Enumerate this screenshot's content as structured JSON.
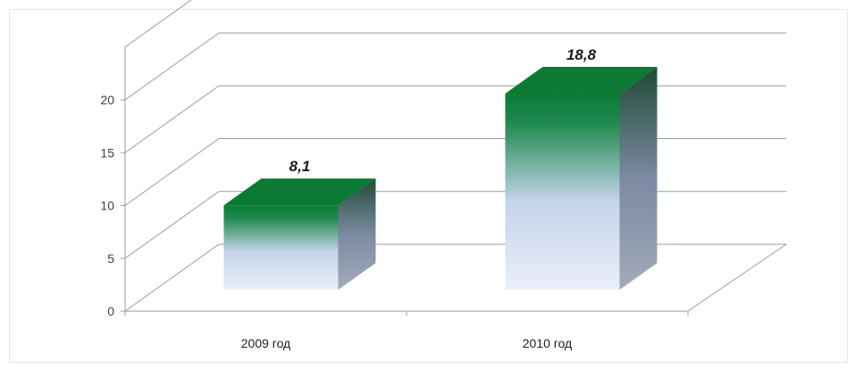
{
  "chart_data": {
    "type": "bar",
    "categories": [
      "2009 год",
      "2010 год"
    ],
    "values": [
      8.1,
      18.8
    ],
    "data_labels": [
      "8,1",
      "18,8"
    ],
    "title": "",
    "xlabel": "",
    "ylabel": "",
    "ylim": [
      0,
      20
    ],
    "yticks": [
      0,
      5,
      10,
      15,
      20
    ],
    "grid": true,
    "legend": "none",
    "style": "3d-column",
    "colors": {
      "bar_top": "#0a7a35",
      "bar_front_top": "#0b7b36",
      "bar_front_bottom": "#e6ecf8",
      "bar_side": "#8a93a8",
      "grid": "#9a9a9a",
      "axis": "#9a9a9a"
    }
  }
}
